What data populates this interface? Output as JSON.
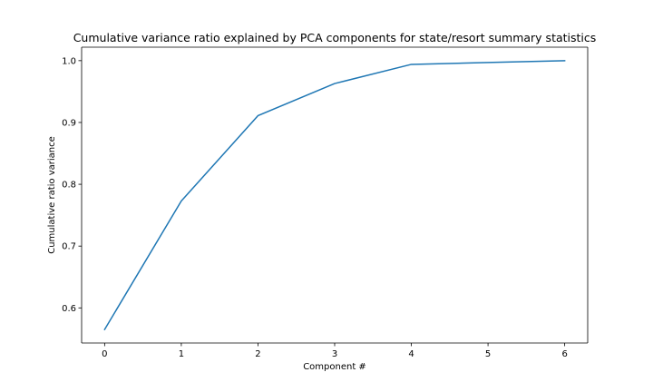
{
  "chart_data": {
    "type": "line",
    "title": "Cumulative variance ratio explained by PCA components for state/resort summary statistics",
    "xlabel": "Component #",
    "ylabel": "Cumulative ratio variance",
    "x": [
      0,
      1,
      2,
      3,
      4,
      5,
      6
    ],
    "series": [
      {
        "values": [
          0.565,
          0.773,
          0.911,
          0.963,
          0.994,
          0.997,
          1.0
        ],
        "color": "#1f77b4"
      }
    ],
    "xlim": [
      -0.3,
      6.3
    ],
    "ylim": [
      0.5432,
      1.0218
    ],
    "xticks": [
      0,
      1,
      2,
      3,
      4,
      5,
      6
    ],
    "yticks": [
      0.6,
      0.7,
      0.8,
      0.9,
      1.0
    ],
    "ytick_labels": [
      "0.6",
      "0.7",
      "0.8",
      "0.9",
      "1.0"
    ],
    "grid": false,
    "legend": "none"
  }
}
